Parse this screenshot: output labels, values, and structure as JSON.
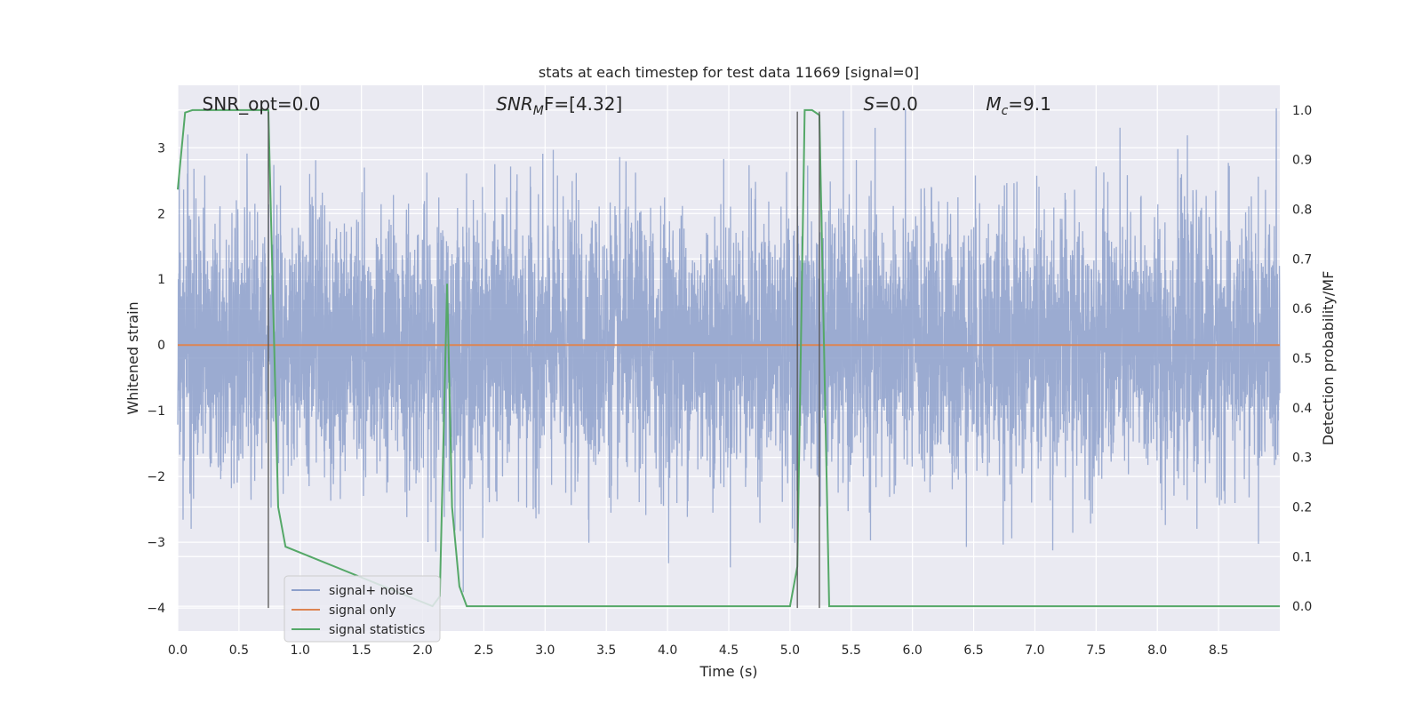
{
  "chart_data": {
    "type": "line",
    "title": "stats at each timestep for test data 11669 [signal=0]",
    "xlabel": "Time (s)",
    "ylabel_left": "Whitened strain",
    "ylabel_right": "Detection probability/MF",
    "xlim": [
      0.0,
      9.0
    ],
    "ylim_left": [
      -4.35,
      3.95
    ],
    "ylim_right": [
      -0.05,
      1.05
    ],
    "xticks": [
      "0.0",
      "0.5",
      "1.0",
      "1.5",
      "2.0",
      "2.5",
      "3.0",
      "3.5",
      "4.0",
      "4.5",
      "5.0",
      "5.5",
      "6.0",
      "6.5",
      "7.0",
      "7.5",
      "8.0",
      "8.5"
    ],
    "yticks_left": [
      "3",
      "2",
      "1",
      "0",
      "−1",
      "−2",
      "−3",
      "−4"
    ],
    "yticks_right": [
      "1.0",
      "0.9",
      "0.8",
      "0.7",
      "0.6",
      "0.5",
      "0.4",
      "0.3",
      "0.2",
      "0.1",
      "0.0"
    ],
    "grid": true,
    "legend_position": "lower-left",
    "annotations": [
      {
        "text": "SNR_opt=0.0",
        "x": 0.2
      },
      {
        "text": "SNR",
        "sub": "M",
        "after": "F=[4.32]",
        "x": 2.6
      },
      {
        "text": "S",
        "after": "=0.0",
        "x": 5.6
      },
      {
        "text": "M",
        "sub": "c",
        "after": "=9.1",
        "x": 6.6
      }
    ],
    "series": [
      {
        "name": "signal+ noise",
        "color": "#8da0cb",
        "axis": "left",
        "kind": "noise",
        "noise_sigma": 1.0,
        "duration": 9.0
      },
      {
        "name": "signal only",
        "color": "#dd8452",
        "axis": "left",
        "x": [
          0.0,
          9.0
        ],
        "y": [
          0.0,
          0.0
        ]
      },
      {
        "name": "signal statistics",
        "color": "#55a868",
        "axis": "right",
        "x": [
          0.0,
          0.06,
          0.12,
          0.68,
          0.74,
          0.82,
          0.88,
          2.08,
          2.14,
          2.2,
          2.24,
          2.3,
          2.36,
          5.0,
          5.06,
          5.12,
          5.18,
          5.24,
          5.32,
          5.38,
          9.0
        ],
        "y": [
          0.84,
          0.995,
          1.0,
          1.0,
          1.0,
          0.2,
          0.12,
          0.0,
          0.02,
          0.65,
          0.2,
          0.04,
          0.0,
          0.0,
          0.08,
          1.0,
          1.0,
          0.99,
          0.0,
          0.0,
          0.0
        ]
      }
    ],
    "vlines": [
      {
        "x": 0.74,
        "ymin": -4.0,
        "ymax": 3.55
      },
      {
        "x": 5.06,
        "ymin": -4.0,
        "ymax": 3.55
      },
      {
        "x": 5.24,
        "ymin": -4.0,
        "ymax": 3.55
      }
    ]
  }
}
